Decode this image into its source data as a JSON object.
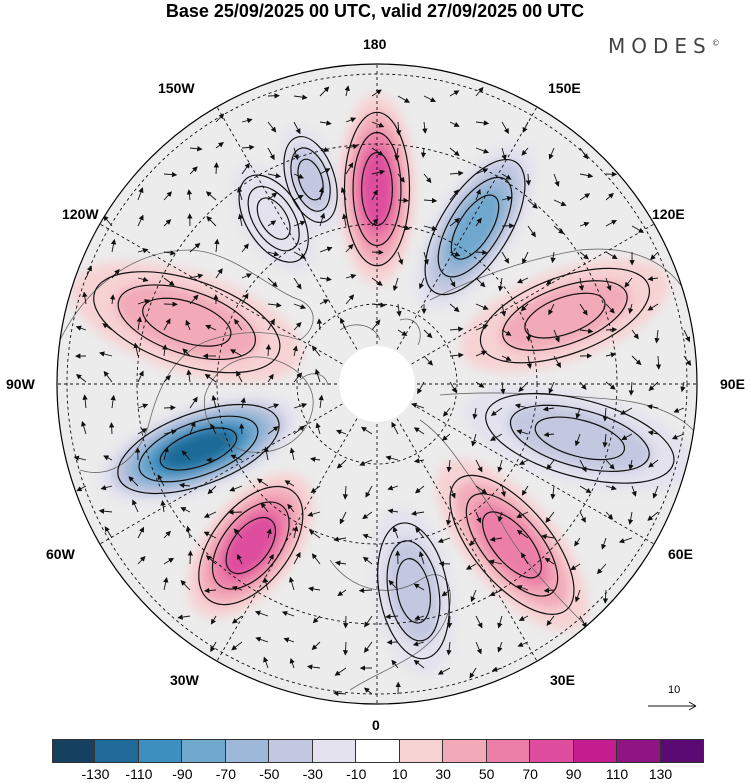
{
  "title": "Base 25/09/2025 00 UTC, valid 27/09/2025 00 UTC",
  "brand": "MODES",
  "brand_mark": "©",
  "longitude_labels": {
    "top": "180",
    "bottom": "0",
    "left": "90W",
    "right": "90E",
    "upper_left_1": "150W",
    "upper_left_2": "120W",
    "upper_right_1": "150E",
    "upper_right_2": "120E",
    "lower_left_1": "60W",
    "lower_left_2": "30W",
    "lower_right_1": "60E",
    "lower_right_2": "30E"
  },
  "reference_vector": "10",
  "colorbar": {
    "colors": [
      "#16405f",
      "#1f6a98",
      "#3c8fbf",
      "#6fa7cd",
      "#9db8d8",
      "#c3c8e0",
      "#e3e2ee",
      "#ffffff",
      "#f7d2d3",
      "#f2aab8",
      "#ec7fa7",
      "#de4d9e",
      "#c51c8f",
      "#8e1582",
      "#5a0a72"
    ],
    "ticks": [
      "-130",
      "-110",
      "-90",
      "-70",
      "-50",
      "-30",
      "-10",
      "10",
      "30",
      "50",
      "70",
      "90",
      "110",
      "130"
    ]
  },
  "anomaly_centers": [
    {
      "name": "180-positive",
      "value": 95
    },
    {
      "name": "150E-negative",
      "value": -80
    },
    {
      "name": "110E-positive",
      "value": 45
    },
    {
      "name": "80E-negative",
      "value": -55
    },
    {
      "name": "45E-positive",
      "value": 65
    },
    {
      "name": "15E-negative",
      "value": -45
    },
    {
      "name": "35W-positive",
      "value": 85
    },
    {
      "name": "65W-negative",
      "value": -120
    },
    {
      "name": "100W-positive",
      "value": 55
    },
    {
      "name": "145W-negative",
      "value": -35
    },
    {
      "name": "160W-negative",
      "value": -40
    }
  ]
}
